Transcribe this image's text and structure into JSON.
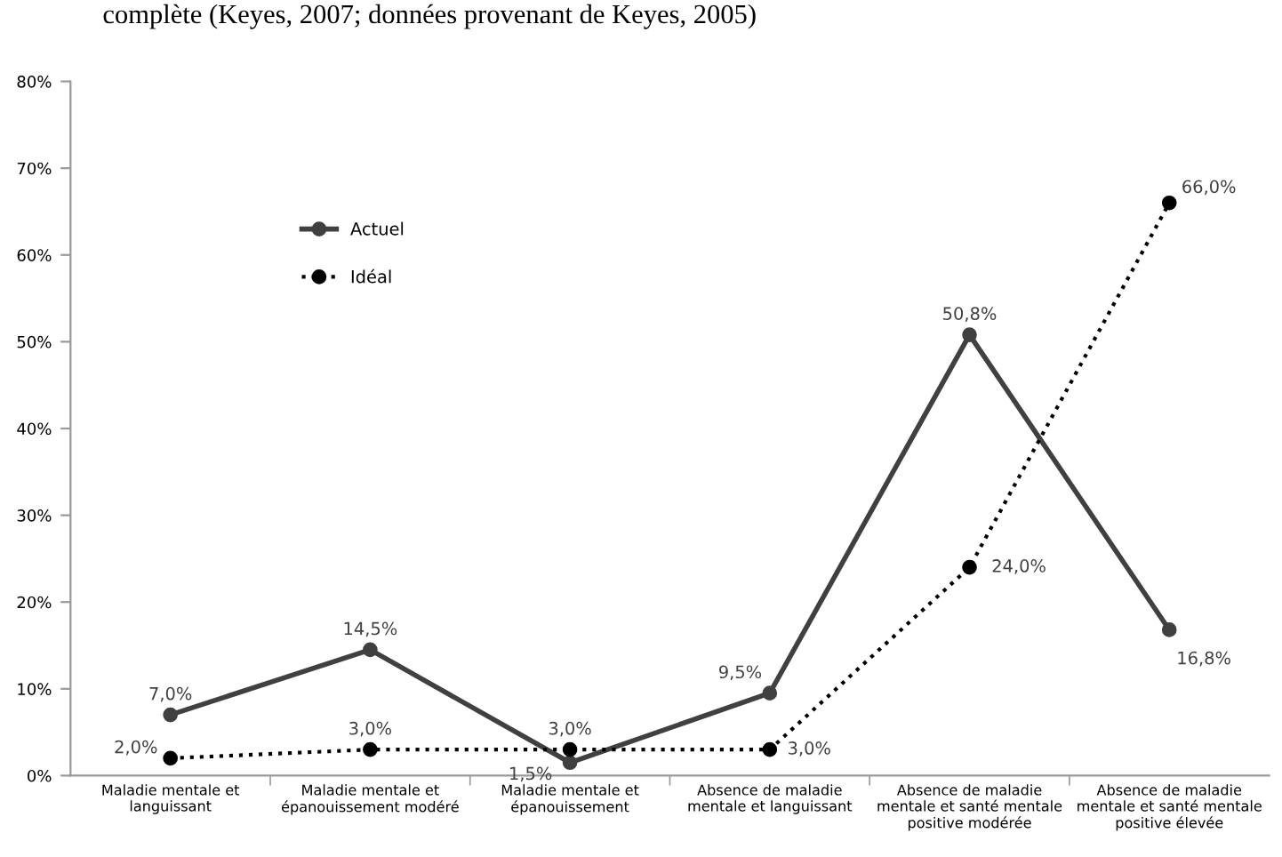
{
  "chart_data": {
    "type": "line",
    "title": "complète (Keyes, 2007; données provenant de Keyes, 2005)",
    "categories": [
      "Maladie mentale et\nlanguissant",
      "Maladie mentale et\népanouissement modéré",
      "Maladie mentale et\népanouissement",
      "Absence de maladie\nmentale et languissant",
      "Absence de maladie\nmentale et santé mentale\npositive modérée",
      "Absence de maladie\nmentale et santé mentale\npositive élevée"
    ],
    "series": [
      {
        "name": "Actuel",
        "color": "#404040",
        "line_style": "solid",
        "values": [
          7.0,
          14.5,
          1.5,
          9.5,
          50.8,
          16.8
        ],
        "value_labels": [
          "7,0%",
          "14,5%",
          "1,5%",
          "9,5%",
          "50,8%",
          "16,8%"
        ]
      },
      {
        "name": "Idéal",
        "color": "#000000",
        "line_style": "dotted",
        "values": [
          2.0,
          3.0,
          3.0,
          3.0,
          24.0,
          66.0
        ],
        "value_labels": [
          "2,0%",
          "3,0%",
          "3,0%",
          "3,0%",
          "24,0%",
          "66,0%"
        ]
      }
    ],
    "ylim": [
      0,
      80
    ],
    "yticks": [
      {
        "value": 0,
        "label": "0%"
      },
      {
        "value": 10,
        "label": "10%"
      },
      {
        "value": 20,
        "label": "20%"
      },
      {
        "value": 30,
        "label": "30%"
      },
      {
        "value": 40,
        "label": "40%"
      },
      {
        "value": 50,
        "label": "50%"
      },
      {
        "value": 60,
        "label": "60%"
      },
      {
        "value": 70,
        "label": "70%"
      },
      {
        "value": 80,
        "label": "80%"
      }
    ],
    "marker": "circle",
    "grid": false,
    "legend": "top left"
  }
}
